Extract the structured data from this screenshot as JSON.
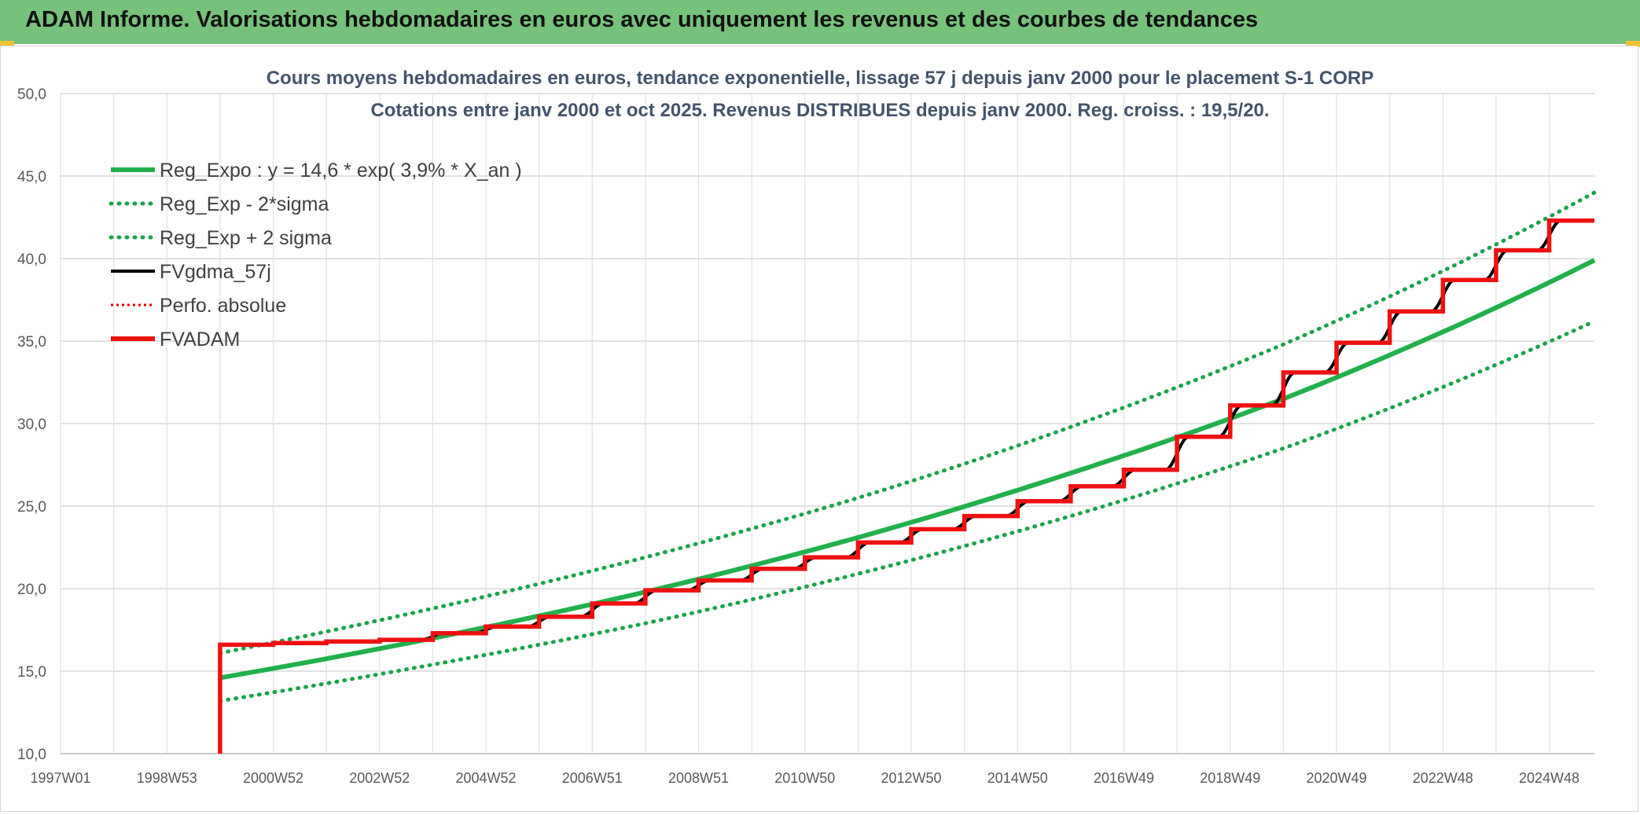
{
  "header": {
    "title": "ADAM Informe. Valorisations hebdomadaires en euros avec uniquement les revenus et des courbes de tendances"
  },
  "colors": {
    "header_bg": "#77c27a",
    "accent_yellow": "#f1c232",
    "reg_expo": "#22b04b",
    "bands": "#1aa34a",
    "fvgdma": "#000000",
    "perfo": "#e00000",
    "fvadam": "#ee1111"
  },
  "chart_data": {
    "type": "line",
    "title_line1": "Cours moyens hebdomadaires en euros, tendance exponentielle, lissage 57 j depuis janv 2000 pour le placement S-1 CORP",
    "title_line2": "Cotations entre janv 2000 et oct 2025. Revenus DISTRIBUES depuis janv 2000. Reg. croiss. : 19,5/20.",
    "ylim": [
      10,
      50
    ],
    "y_ticks": [
      "10,0",
      "15,0",
      "20,0",
      "25,0",
      "30,0",
      "35,0",
      "40,0",
      "45,0",
      "50,0"
    ],
    "xlim": [
      1997.0,
      2025.85
    ],
    "x_ticks": [
      {
        "label": "1997W01",
        "x": 1997.0
      },
      {
        "label": "1998W53",
        "x": 1999.0
      },
      {
        "label": "2000W52",
        "x": 2001.0
      },
      {
        "label": "2002W52",
        "x": 2003.0
      },
      {
        "label": "2004W52",
        "x": 2005.0
      },
      {
        "label": "2006W51",
        "x": 2007.0
      },
      {
        "label": "2008W51",
        "x": 2009.0
      },
      {
        "label": "2010W50",
        "x": 2011.0
      },
      {
        "label": "2012W50",
        "x": 2013.0
      },
      {
        "label": "2014W50",
        "x": 2015.0
      },
      {
        "label": "2016W49",
        "x": 2017.0
      },
      {
        "label": "2018W49",
        "x": 2019.0
      },
      {
        "label": "2020W49",
        "x": 2021.0
      },
      {
        "label": "2022W48",
        "x": 2023.0
      },
      {
        "label": "2024W48",
        "x": 2025.0
      }
    ],
    "legend": {
      "position": "top-left",
      "entries": [
        {
          "name": "Reg_Expo : y = 14,6 * exp( 3,9% *  X_an )",
          "style": "solid-thick",
          "color": "#22b04b"
        },
        {
          "name": "Reg_Exp - 2*sigma",
          "style": "dotted",
          "color": "#1aa34a"
        },
        {
          "name": "Reg_Exp + 2 sigma",
          "style": "dotted",
          "color": "#1aa34a"
        },
        {
          "name": "FVgdma_57j",
          "style": "solid",
          "color": "#000000"
        },
        {
          "name": "Perfo. absolue",
          "style": "dotted-thin",
          "color": "#e00000"
        },
        {
          "name": "FVADAM",
          "style": "solid-thick",
          "color": "#ee1111"
        }
      ]
    },
    "series": [
      {
        "name": "Reg_Expo : y = 14,6 * exp( 3,9% *  X_an )",
        "x": [
          2000.0,
          2004.0,
          2008.0,
          2012.0,
          2016.0,
          2020.0,
          2025.85
        ],
        "y": [
          14.6,
          17.0,
          19.8,
          23.1,
          27.0,
          31.5,
          39.9
        ]
      },
      {
        "name": "Reg_Exp - 2*sigma",
        "x": [
          2000.0,
          2004.0,
          2008.0,
          2012.0,
          2016.0,
          2020.0,
          2025.85
        ],
        "y": [
          13.2,
          15.4,
          17.9,
          20.9,
          24.4,
          28.5,
          36.2
        ]
      },
      {
        "name": "Reg_Exp + 2 sigma",
        "x": [
          2000.0,
          2004.0,
          2008.0,
          2012.0,
          2016.0,
          2020.0,
          2025.85
        ],
        "y": [
          16.1,
          18.8,
          21.9,
          25.5,
          29.8,
          34.8,
          44.0
        ]
      },
      {
        "name": "FVADAM",
        "x": [
          2000.0,
          2000.0,
          2001.0,
          2002.0,
          2003.0,
          2004.0,
          2005.0,
          2006.0,
          2007.0,
          2008.0,
          2009.0,
          2010.0,
          2011.0,
          2012.0,
          2013.0,
          2014.0,
          2015.0,
          2016.0,
          2017.0,
          2018.0,
          2019.0,
          2020.0,
          2021.0,
          2022.0,
          2023.0,
          2024.0,
          2025.0
        ],
        "y": [
          10.0,
          16.6,
          16.7,
          16.8,
          16.9,
          17.3,
          17.7,
          18.3,
          19.1,
          19.9,
          20.5,
          21.2,
          21.9,
          22.8,
          23.6,
          24.4,
          25.3,
          26.2,
          27.2,
          29.2,
          31.1,
          33.1,
          34.9,
          36.8,
          38.7,
          40.5,
          42.3
        ]
      }
    ]
  }
}
